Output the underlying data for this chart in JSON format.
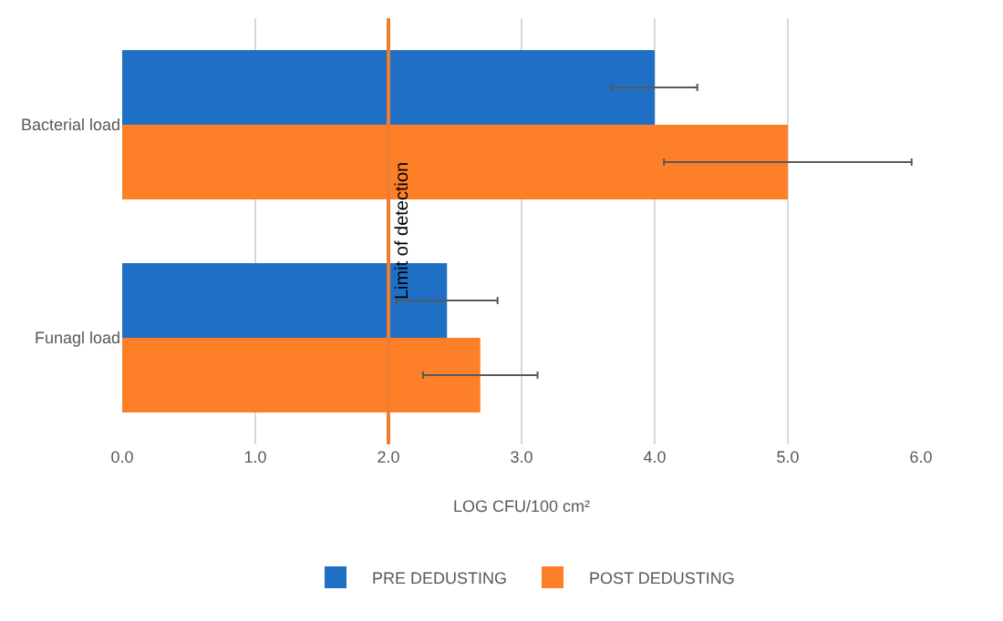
{
  "chart_data": {
    "type": "bar",
    "orientation": "horizontal",
    "categories": [
      "Bacterial load",
      "Funagl load"
    ],
    "series": [
      {
        "name": "PRE DEDUSTING",
        "color": "#1f6fc5",
        "values": [
          4.0,
          2.44
        ],
        "errors": [
          0.32,
          0.38
        ]
      },
      {
        "name": "POST DEDUSTING",
        "color": "#fd7f28",
        "values": [
          5.0,
          2.69
        ],
        "errors": [
          0.93,
          0.43
        ]
      }
    ],
    "xlabel": "LOG CFU/100 cm²",
    "xlim": [
      0,
      6
    ],
    "xticks": [
      {
        "value": 0,
        "label": "0.0"
      },
      {
        "value": 1,
        "label": "1.0"
      },
      {
        "value": 2,
        "label": "2.0"
      },
      {
        "value": 3,
        "label": "3.0"
      },
      {
        "value": 4,
        "label": "4.0"
      },
      {
        "value": 5,
        "label": "5.0"
      },
      {
        "value": 6,
        "label": "6.0"
      }
    ],
    "ref_lines": [
      {
        "axis": "x",
        "value": 2,
        "label": "Limit of detection",
        "color": "#ed7d31"
      }
    ],
    "grid": "x",
    "legend": "bottom"
  }
}
